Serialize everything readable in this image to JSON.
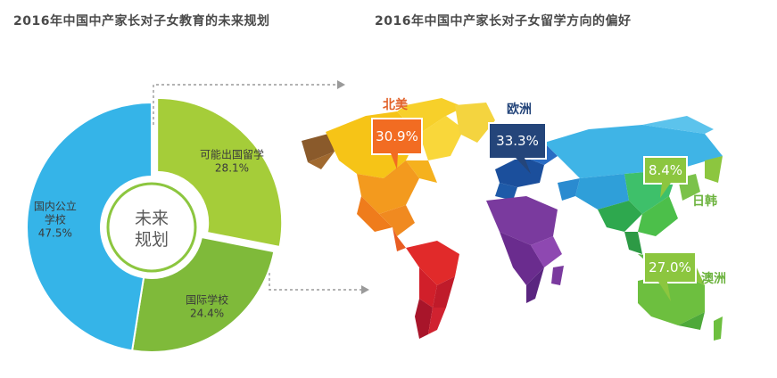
{
  "titles": {
    "left": "2016年中国中产家长对子女教育的未来规划",
    "right": "2016年中国中产家长对子女留学方向的偏好"
  },
  "center_label": [
    "未来",
    "规划"
  ],
  "chart_data": [
    {
      "type": "pie",
      "title": "2016年中国中产家长对子女教育的未来规划",
      "center_text": "未来规划",
      "categories": [
        "可能出国留学",
        "国际学校",
        "国内公立学校"
      ],
      "label_lines": [
        [
          "可能出国留学",
          "28.1%"
        ],
        [
          "国际学校",
          "24.4%"
        ],
        [
          "国内公立",
          "学校",
          "47.5%"
        ]
      ],
      "values": [
        28.1,
        24.4,
        47.5
      ],
      "colors": [
        "#a5cd39",
        "#7fba3a",
        "#35b4e8"
      ]
    },
    {
      "type": "bar",
      "title": "2016年中国中产家长对子女留学方向的偏好",
      "categories": [
        "北美",
        "欧洲",
        "日韩",
        "澳洲"
      ],
      "values": [
        30.9,
        33.3,
        8.4,
        27.0
      ],
      "value_labels": [
        "30.9%",
        "33.3%",
        "8.4%",
        "27.0%"
      ],
      "colors": [
        "#f26c22",
        "#24457a",
        "#8cc63f",
        "#8cc63f"
      ],
      "label_colors": [
        "#e2622a",
        "#24457a",
        "#6db33f",
        "#6db33f"
      ]
    }
  ]
}
